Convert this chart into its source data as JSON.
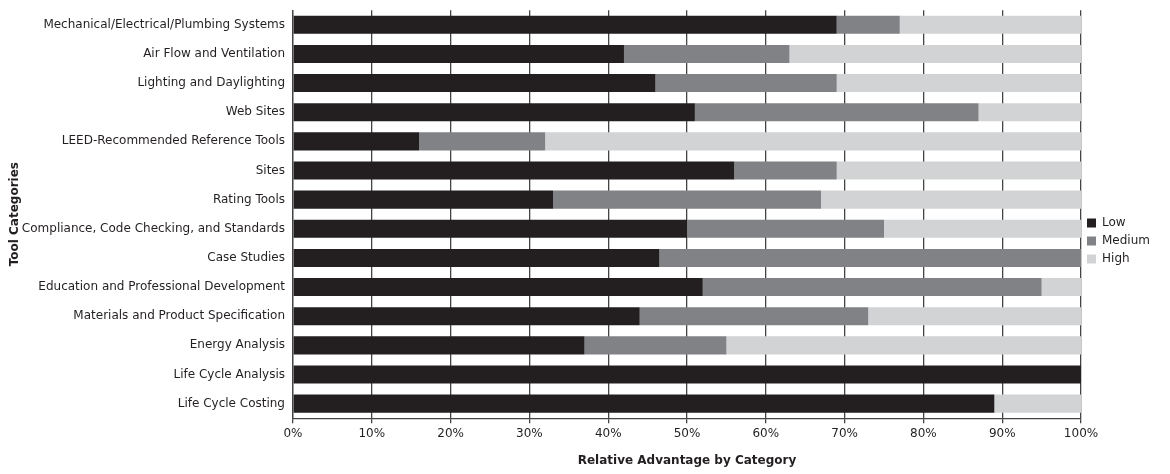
{
  "chart_data": {
    "type": "bar",
    "orientation": "horizontal",
    "stacked": true,
    "xlabel": "Relative Advantage by Category",
    "ylabel": "Tool Categories",
    "categories": [
      "Mechanical/Electrical/Plumbing Systems",
      "Air Flow and Ventilation",
      "Lighting and Daylighting",
      "Web Sites",
      "LEED-Recommended Reference Tools",
      "Sites",
      "Rating Tools",
      "Compliance, Code Checking, and Standards",
      "Case Studies",
      "Education and Professional Development",
      "Materials and Product Specification",
      "Energy Analysis",
      "Life Cycle Analysis",
      "Life Cycle Costing"
    ],
    "series": [
      {
        "name": "Low",
        "color": "#231f20",
        "values": [
          69,
          42,
          46,
          51,
          16,
          56,
          33,
          50,
          46.5,
          52,
          44,
          37,
          100,
          89
        ]
      },
      {
        "name": "Medium",
        "color": "#808285",
        "values": [
          8,
          21,
          23,
          36,
          16,
          13,
          34,
          25,
          53.5,
          43,
          29,
          18,
          0,
          0
        ]
      },
      {
        "name": "High",
        "color": "#d1d3d4",
        "values": [
          23,
          37,
          31,
          13,
          68,
          31,
          33,
          25,
          0,
          5,
          27,
          45,
          0,
          11
        ]
      }
    ],
    "xlim": [
      0,
      100
    ],
    "xticks": [
      {
        "value": 0,
        "label": "0%"
      },
      {
        "value": 10,
        "label": "10%"
      },
      {
        "value": 20,
        "label": "20%"
      },
      {
        "value": 30,
        "label": "30%"
      },
      {
        "value": 40,
        "label": "40%"
      },
      {
        "value": 50,
        "label": "50%"
      },
      {
        "value": 60,
        "label": "60%"
      },
      {
        "value": 70,
        "label": "70%"
      },
      {
        "value": 80,
        "label": "80%"
      },
      {
        "value": 90,
        "label": "90%"
      },
      {
        "value": 100,
        "label": "100%"
      }
    ],
    "grid": "x",
    "legend": "right"
  }
}
